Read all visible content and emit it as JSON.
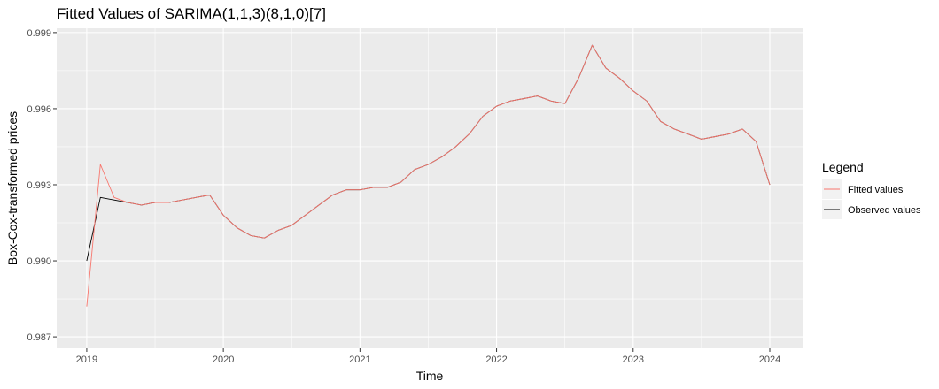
{
  "chart_data": {
    "type": "line",
    "title": "Fitted Values of SARIMA(1,1,3)(8,1,0)[7]",
    "xlabel": "Time",
    "ylabel": "Box-Cox-transformed prices",
    "xlim": [
      2018.78,
      2024.24
    ],
    "ylim": [
      0.98655,
      0.99917
    ],
    "x_ticks": [
      "2019",
      "2020",
      "2021",
      "2022",
      "2023",
      "2024"
    ],
    "y_ticks": [
      "0.987",
      "0.990",
      "0.993",
      "0.996",
      "0.999"
    ],
    "grid": true,
    "legend": {
      "title": "Legend",
      "position": "right",
      "entries": [
        {
          "name": "Fitted values",
          "color": "#f8766d"
        },
        {
          "name": "Observed values",
          "color": "#000000"
        }
      ]
    },
    "series": [
      {
        "name": "Observed values",
        "color": "#000000",
        "x": [
          2019.0,
          2019.1,
          2019.2,
          2019.3,
          2019.4,
          2019.5,
          2019.6,
          2019.7,
          2019.8,
          2019.9,
          2020.0,
          2020.1,
          2020.2,
          2020.3,
          2020.4,
          2020.5,
          2020.6,
          2020.7,
          2020.8,
          2020.9,
          2021.0,
          2021.1,
          2021.2,
          2021.3,
          2021.4,
          2021.5,
          2021.6,
          2021.7,
          2021.8,
          2021.9,
          2022.0,
          2022.1,
          2022.2,
          2022.3,
          2022.4,
          2022.5,
          2022.6,
          2022.7,
          2022.8,
          2022.9,
          2023.0,
          2023.1,
          2023.2,
          2023.3,
          2023.4,
          2023.5,
          2023.6,
          2023.7,
          2023.8,
          2023.9,
          2024.0
        ],
        "y": [
          0.99,
          0.9925,
          0.9924,
          0.9923,
          0.9922,
          0.9923,
          0.9923,
          0.9924,
          0.9925,
          0.9926,
          0.9918,
          0.9913,
          0.991,
          0.9909,
          0.9912,
          0.9914,
          0.9918,
          0.9922,
          0.9926,
          0.9928,
          0.9928,
          0.9929,
          0.9929,
          0.9931,
          0.9936,
          0.9938,
          0.9941,
          0.9945,
          0.995,
          0.9957,
          0.9961,
          0.9963,
          0.9964,
          0.9965,
          0.9963,
          0.9962,
          0.9972,
          0.9985,
          0.9976,
          0.9972,
          0.9967,
          0.9963,
          0.9955,
          0.9952,
          0.995,
          0.9948,
          0.9949,
          0.995,
          0.9952,
          0.9947,
          0.993
        ]
      },
      {
        "name": "Fitted values",
        "color": "#f8766d",
        "x": [
          2019.0,
          2019.1,
          2019.2,
          2019.3,
          2019.4,
          2019.5,
          2019.6,
          2019.7,
          2019.8,
          2019.9,
          2020.0,
          2020.1,
          2020.2,
          2020.3,
          2020.4,
          2020.5,
          2020.6,
          2020.7,
          2020.8,
          2020.9,
          2021.0,
          2021.1,
          2021.2,
          2021.3,
          2021.4,
          2021.5,
          2021.6,
          2021.7,
          2021.8,
          2021.9,
          2022.0,
          2022.1,
          2022.2,
          2022.3,
          2022.4,
          2022.5,
          2022.6,
          2022.7,
          2022.8,
          2022.9,
          2023.0,
          2023.1,
          2023.2,
          2023.3,
          2023.4,
          2023.5,
          2023.6,
          2023.7,
          2023.8,
          2023.9,
          2024.0
        ],
        "y": [
          0.9882,
          0.9938,
          0.9925,
          0.9923,
          0.9922,
          0.9923,
          0.9923,
          0.9924,
          0.9925,
          0.9926,
          0.9918,
          0.9913,
          0.991,
          0.9909,
          0.9912,
          0.9914,
          0.9918,
          0.9922,
          0.9926,
          0.9928,
          0.9928,
          0.9929,
          0.9929,
          0.9931,
          0.9936,
          0.9938,
          0.9941,
          0.9945,
          0.995,
          0.9957,
          0.9961,
          0.9963,
          0.9964,
          0.9965,
          0.9963,
          0.9962,
          0.9972,
          0.9985,
          0.9976,
          0.9972,
          0.9967,
          0.9963,
          0.9955,
          0.9952,
          0.995,
          0.9948,
          0.9949,
          0.995,
          0.9952,
          0.9947,
          0.993
        ]
      }
    ]
  }
}
